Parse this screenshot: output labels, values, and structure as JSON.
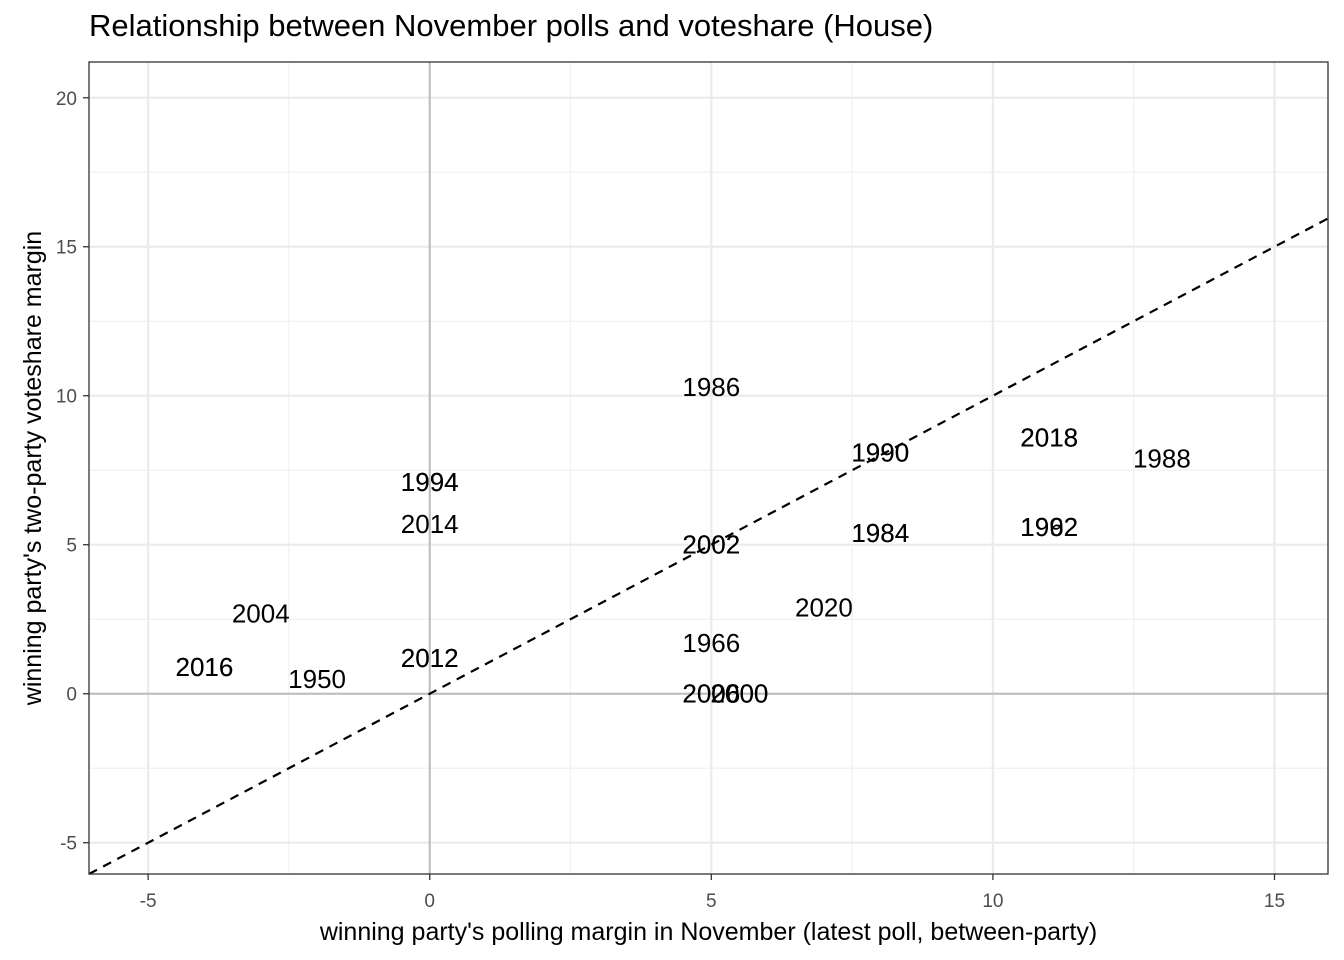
{
  "chart_data": {
    "type": "scatter",
    "title": "Relationship between November polls and voteshare (House)",
    "xlabel": "winning party's polling margin in November (latest poll, between-party)",
    "ylabel": "winning party's two-party voteshare margin",
    "xlim": [
      -6.05,
      15.95
    ],
    "ylim": [
      -6.05,
      21.2
    ],
    "x_ticks": [
      -5,
      0,
      5,
      10,
      15
    ],
    "y_ticks": [
      -5,
      0,
      5,
      10,
      15,
      20
    ],
    "x_tick_labels": [
      "-5",
      "0",
      "5",
      "10",
      "15"
    ],
    "y_tick_labels": [
      "-5",
      "0",
      "5",
      "10",
      "15",
      "20"
    ],
    "grid": true,
    "reference_lines": [
      {
        "type": "vline",
        "x": 0
      },
      {
        "type": "hline",
        "y": 0
      },
      {
        "type": "diagonal",
        "slope": 1,
        "intercept": 0,
        "style": "dashed"
      }
    ],
    "points": [
      {
        "label": "1986",
        "x": 5,
        "y": 10.3
      },
      {
        "label": "1990",
        "x": 8,
        "y": 8.1
      },
      {
        "label": "1990",
        "x": 8,
        "y": 8.1
      },
      {
        "label": "2018",
        "x": 11,
        "y": 8.6
      },
      {
        "label": "2018",
        "x": 11,
        "y": 8.6
      },
      {
        "label": "1988",
        "x": 13,
        "y": 7.9
      },
      {
        "label": "1994",
        "x": 0,
        "y": 7.1
      },
      {
        "label": "1994",
        "x": 0,
        "y": 7.1
      },
      {
        "label": "2014",
        "x": 0,
        "y": 5.7
      },
      {
        "label": "1984",
        "x": 8,
        "y": 5.4
      },
      {
        "label": "1984",
        "x": 8,
        "y": 5.4
      },
      {
        "label": "1962",
        "x": 11,
        "y": 5.6
      },
      {
        "label": "1992",
        "x": 11,
        "y": 5.6
      },
      {
        "label": "2002",
        "x": 5,
        "y": 5.0
      },
      {
        "label": "2002",
        "x": 5,
        "y": 5.0
      },
      {
        "label": "2020",
        "x": 7,
        "y": 2.9
      },
      {
        "label": "2004",
        "x": -3,
        "y": 2.7
      },
      {
        "label": "1966",
        "x": 5,
        "y": 1.7
      },
      {
        "label": "2012",
        "x": 0,
        "y": 1.2
      },
      {
        "label": "2012",
        "x": 0,
        "y": 1.2
      },
      {
        "label": "2016",
        "x": -4,
        "y": 0.9
      },
      {
        "label": "2016",
        "x": -4,
        "y": 0.9
      },
      {
        "label": "1950",
        "x": -2,
        "y": 0.5
      },
      {
        "label": "2006",
        "x": 5,
        "y": 0
      },
      {
        "label": "2006",
        "x": 5,
        "y": 0
      },
      {
        "label": "2000",
        "x": 5.5,
        "y": 0
      },
      {
        "label": "2000",
        "x": 5.5,
        "y": 0
      }
    ]
  }
}
